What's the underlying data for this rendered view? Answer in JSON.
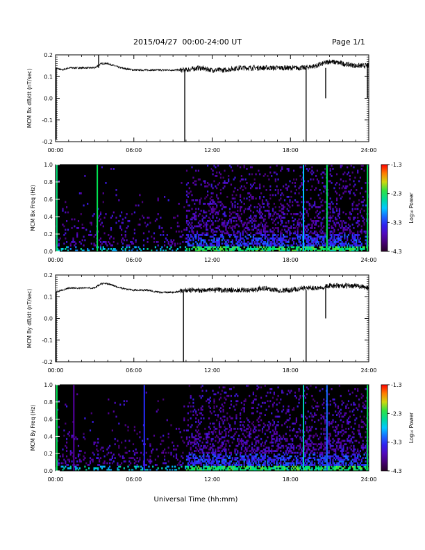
{
  "header": {
    "date_range": "2015/04/27  00:00-24:00 UT",
    "page_label": "Page 1/1"
  },
  "chart_data": [
    {
      "type": "line",
      "panel": "MCM Bx dB/dt",
      "ylabel": "MCM Bx dB/dt (nT/sec)",
      "xlabel": "",
      "x_unit": "hours UT",
      "xlim": [
        0,
        24
      ],
      "ylim": [
        -0.2,
        0.2
      ],
      "y_ticks": [
        "-0.2",
        "-0.1",
        "0.0",
        "0.1",
        "0.2"
      ],
      "x_ticks": [
        "00:00",
        "06:00",
        "12:00",
        "18:00",
        "24:00"
      ],
      "x": [
        0,
        0.5,
        1,
        2,
        3,
        3.5,
        4,
        5,
        6,
        7,
        8,
        9,
        10,
        11,
        12,
        13,
        14,
        15,
        16,
        17,
        18,
        19,
        20,
        21,
        22,
        23,
        24
      ],
      "y": [
        0.14,
        0.13,
        0.14,
        0.14,
        0.14,
        0.16,
        0.16,
        0.14,
        0.13,
        0.13,
        0.13,
        0.13,
        0.13,
        0.14,
        0.13,
        0.13,
        0.14,
        0.14,
        0.14,
        0.14,
        0.14,
        0.14,
        0.15,
        0.17,
        0.16,
        0.15,
        0.15
      ],
      "spikes_x": [
        0.05,
        3.3,
        9.9,
        19.2,
        20.7,
        23.9
      ],
      "spikes_y": [
        -0.19,
        0.2,
        -0.2,
        -0.2,
        0.0,
        0.0
      ]
    },
    {
      "type": "heatmap",
      "panel": "MCM Bx Freq",
      "ylabel": "MCM Bx Freq (Hz)",
      "xlabel": "",
      "xlim": [
        0,
        24
      ],
      "ylim": [
        0,
        1.0
      ],
      "y_ticks": [
        "0.0",
        "0.2",
        "0.4",
        "0.6",
        "0.8",
        "1.0"
      ],
      "x_ticks": [
        "00:00",
        "06:00",
        "12:00",
        "18:00",
        "24:00"
      ],
      "colorbar_label": "Log₁₀ Power",
      "colorbar_ticks": [
        "-1.3",
        "-2.3",
        "-3.3",
        "-4.3"
      ],
      "clim": [
        -4.3,
        -1.3
      ],
      "hour_bins": [
        0,
        1,
        2,
        3,
        4,
        5,
        6,
        7,
        8,
        9,
        10,
        11,
        12,
        13,
        14,
        15,
        16,
        17,
        18,
        19,
        20,
        21,
        22,
        23
      ],
      "activity": [
        0.35,
        0.3,
        0.25,
        0.35,
        0.3,
        0.25,
        0.25,
        0.3,
        0.25,
        0.25,
        0.55,
        0.65,
        0.7,
        0.65,
        0.65,
        0.7,
        0.65,
        0.7,
        0.6,
        0.7,
        0.65,
        0.7,
        0.6,
        0.55
      ],
      "vertical_lines": [
        {
          "x": 0.1,
          "level": -2.4
        },
        {
          "x": 3.2,
          "level": -2.3
        },
        {
          "x": 19.0,
          "level": -2.8
        },
        {
          "x": 20.8,
          "level": -2.3
        },
        {
          "x": 23.9,
          "level": -2.3
        }
      ]
    },
    {
      "type": "line",
      "panel": "MCM By dB/dt",
      "ylabel": "MCM By dB/dt (nT/sec)",
      "xlabel": "",
      "x_unit": "hours UT",
      "xlim": [
        0,
        24
      ],
      "ylim": [
        -0.2,
        0.2
      ],
      "y_ticks": [
        "-0.2",
        "-0.1",
        "0.0",
        "0.1",
        "0.2"
      ],
      "x_ticks": [
        "00:00",
        "06:00",
        "12:00",
        "18:00",
        "24:00"
      ],
      "x": [
        0,
        0.5,
        1,
        2,
        3,
        3.5,
        4,
        5,
        6,
        7,
        8,
        9,
        10,
        11,
        12,
        13,
        14,
        15,
        16,
        17,
        18,
        19,
        20,
        21,
        22,
        23,
        24
      ],
      "y": [
        0.12,
        0.13,
        0.14,
        0.14,
        0.14,
        0.16,
        0.16,
        0.14,
        0.13,
        0.13,
        0.12,
        0.12,
        0.13,
        0.13,
        0.13,
        0.13,
        0.13,
        0.13,
        0.14,
        0.13,
        0.13,
        0.14,
        0.14,
        0.15,
        0.15,
        0.15,
        0.14
      ],
      "spikes_x": [
        0.05,
        9.8,
        19.2,
        20.7
      ],
      "spikes_y": [
        -0.2,
        -0.2,
        -0.2,
        0.0
      ]
    },
    {
      "type": "heatmap",
      "panel": "MCM By Freq",
      "ylabel": "MCM By Freq (Hz)",
      "xlabel": "Universal Time (hh:mm)",
      "xlim": [
        0,
        24
      ],
      "ylim": [
        0,
        1.0
      ],
      "y_ticks": [
        "0.0",
        "0.2",
        "0.4",
        "0.6",
        "0.8",
        "1.0"
      ],
      "x_ticks": [
        "00:00",
        "06:00",
        "12:00",
        "18:00",
        "24:00"
      ],
      "colorbar_label": "Log₁₀ Power",
      "colorbar_ticks": [
        "-1.3",
        "-2.3",
        "-3.3",
        "-4.3"
      ],
      "clim": [
        -4.3,
        -1.3
      ],
      "hour_bins": [
        0,
        1,
        2,
        3,
        4,
        5,
        6,
        7,
        8,
        9,
        10,
        11,
        12,
        13,
        14,
        15,
        16,
        17,
        18,
        19,
        20,
        21,
        22,
        23
      ],
      "activity": [
        0.4,
        0.35,
        0.3,
        0.35,
        0.35,
        0.3,
        0.35,
        0.35,
        0.3,
        0.3,
        0.65,
        0.7,
        0.7,
        0.65,
        0.65,
        0.7,
        0.65,
        0.7,
        0.6,
        0.7,
        0.7,
        0.7,
        0.65,
        0.6
      ],
      "vertical_lines": [
        {
          "x": 0.1,
          "level": -2.3
        },
        {
          "x": 1.4,
          "level": -3.8
        },
        {
          "x": 6.8,
          "level": -3.3
        },
        {
          "x": 19.0,
          "level": -2.6
        },
        {
          "x": 20.8,
          "level": -3.1
        },
        {
          "x": 23.9,
          "level": -2.3
        }
      ]
    }
  ]
}
